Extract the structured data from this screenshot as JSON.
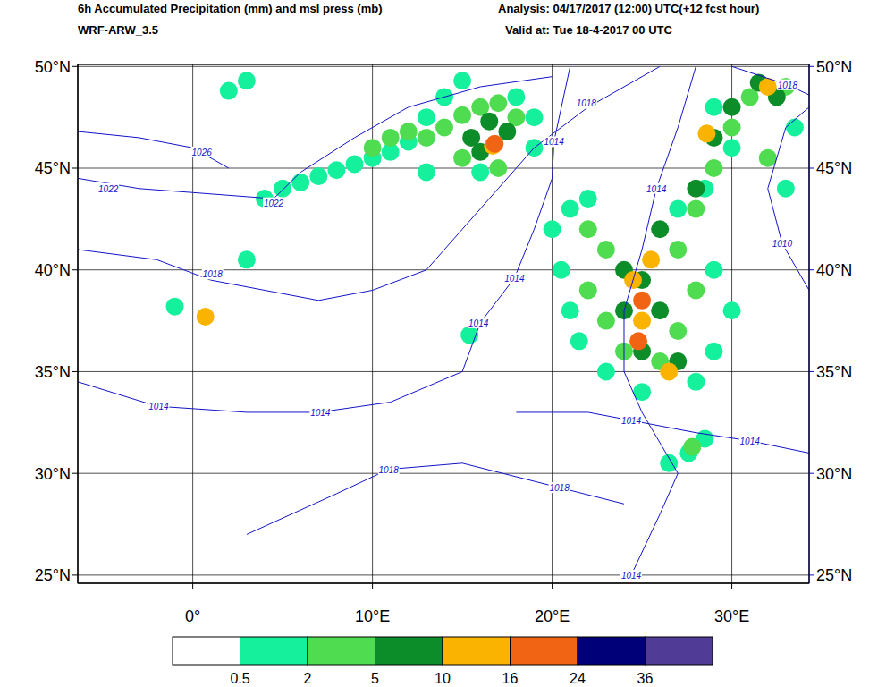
{
  "chart_data": {
    "type": "map",
    "title": "6h Accumulated Precipitation (mm) and msl press (mb)",
    "subtitle": "WRF-ARW_3.5",
    "annotations": [
      "Analysis: 04/17/2017 (12:00) UTC(+12 fcst hour)",
      "Valid at: Tue 18-4-2017 00 UTC"
    ],
    "xlim": [
      -6.4,
      34.3
    ],
    "ylim": [
      24.6,
      50.1
    ],
    "xticks": [
      {
        "value": 0,
        "label": "0°"
      },
      {
        "value": 10,
        "label": "10°E"
      },
      {
        "value": 20,
        "label": "20°E"
      },
      {
        "value": 30,
        "label": "30°E"
      }
    ],
    "yticks": [
      {
        "value": 25,
        "label": "25°N"
      },
      {
        "value": 30,
        "label": "30°N"
      },
      {
        "value": 35,
        "label": "35°N"
      },
      {
        "value": 40,
        "label": "40°N"
      },
      {
        "value": 45,
        "label": "45°N"
      },
      {
        "value": 50,
        "label": "50°N"
      }
    ],
    "grid": true,
    "color_bar": {
      "levels": [
        0.5,
        2,
        5,
        10,
        16,
        24,
        36
      ],
      "colors": [
        "#ffffff",
        "#14f09c",
        "#50dc50",
        "#0d8c2a",
        "#fab400",
        "#f06414",
        "#000078",
        "#503c96"
      ]
    },
    "precip": [
      [
        4,
        43.5,
        1
      ],
      [
        5,
        44,
        1
      ],
      [
        6,
        44.3,
        1
      ],
      [
        7,
        44.6,
        1
      ],
      [
        8,
        44.9,
        1
      ],
      [
        9,
        45.2,
        1
      ],
      [
        10,
        45.5,
        1
      ],
      [
        11,
        45.8,
        1
      ],
      [
        12,
        46.3,
        1
      ],
      [
        13,
        47.5,
        1
      ],
      [
        14,
        48.5,
        1
      ],
      [
        15,
        49.3,
        1
      ],
      [
        18,
        48.5,
        1
      ],
      [
        19,
        47.5,
        1
      ],
      [
        19,
        46,
        1
      ],
      [
        13,
        44.8,
        1
      ],
      [
        16,
        44.8,
        1
      ],
      [
        3,
        40.5,
        1
      ],
      [
        -1,
        38.2,
        1
      ],
      [
        2,
        48.8,
        1
      ],
      [
        3,
        49.3,
        1
      ],
      [
        15.4,
        36.8,
        1
      ],
      [
        20,
        42,
        1
      ],
      [
        21,
        43,
        1
      ],
      [
        22,
        43.5,
        1
      ],
      [
        20.5,
        40,
        1
      ],
      [
        21,
        38,
        1
      ],
      [
        21.5,
        36.5,
        1
      ],
      [
        23,
        35,
        1
      ],
      [
        25,
        34,
        1
      ],
      [
        28,
        34.5,
        1
      ],
      [
        29,
        36,
        1
      ],
      [
        30,
        38,
        1
      ],
      [
        29,
        40,
        1
      ],
      [
        27,
        43,
        1
      ],
      [
        28.5,
        44,
        1
      ],
      [
        30,
        46,
        1
      ],
      [
        29,
        48,
        1
      ],
      [
        33,
        44,
        1
      ],
      [
        33.5,
        47,
        1
      ],
      [
        27.6,
        31,
        1
      ],
      [
        28.5,
        31.7,
        1
      ],
      [
        26.5,
        30.5,
        1
      ],
      [
        10,
        46,
        3
      ],
      [
        11,
        46.5,
        3
      ],
      [
        12,
        46.8,
        3
      ],
      [
        13,
        46.5,
        3
      ],
      [
        14,
        47,
        3
      ],
      [
        15,
        47.6,
        3
      ],
      [
        16,
        48,
        3
      ],
      [
        17,
        48.2,
        3
      ],
      [
        18,
        47.5,
        3
      ],
      [
        15,
        45.5,
        3
      ],
      [
        17,
        45,
        3
      ],
      [
        22,
        42,
        3
      ],
      [
        23,
        41,
        3
      ],
      [
        22,
        39,
        3
      ],
      [
        23,
        37.5,
        3
      ],
      [
        24,
        36,
        3
      ],
      [
        26,
        35.5,
        3
      ],
      [
        27,
        37,
        3
      ],
      [
        28,
        39,
        3
      ],
      [
        27,
        41,
        3
      ],
      [
        28,
        43,
        3
      ],
      [
        29,
        45,
        3
      ],
      [
        30,
        47,
        3
      ],
      [
        31,
        48.5,
        3
      ],
      [
        32,
        45.5,
        3
      ],
      [
        33,
        49,
        3
      ],
      [
        27.8,
        31.3,
        3
      ],
      [
        15.5,
        46.5,
        7
      ],
      [
        16.5,
        47.3,
        7
      ],
      [
        17.5,
        46.8,
        7
      ],
      [
        16,
        45.8,
        7
      ],
      [
        24,
        40,
        7
      ],
      [
        24,
        38,
        7
      ],
      [
        25,
        39.5,
        7
      ],
      [
        26,
        38,
        7
      ],
      [
        25,
        36,
        7
      ],
      [
        27,
        35.5,
        7
      ],
      [
        28,
        44,
        7
      ],
      [
        29,
        46.5,
        7
      ],
      [
        30,
        48,
        7
      ],
      [
        31.5,
        49.2,
        7
      ],
      [
        32.5,
        48.5,
        7
      ],
      [
        26,
        42,
        7
      ],
      [
        16.7,
        46.1,
        12
      ],
      [
        24.5,
        39.5,
        12
      ],
      [
        25,
        37.5,
        12
      ],
      [
        25.5,
        40.5,
        12
      ],
      [
        26.5,
        35,
        12
      ],
      [
        28.6,
        46.7,
        12
      ],
      [
        32,
        49,
        12
      ],
      [
        0.7,
        37.7,
        12
      ],
      [
        25,
        38.5,
        20
      ],
      [
        24.8,
        36.5,
        20
      ],
      [
        16.8,
        46.2,
        20
      ]
    ],
    "isobars": [
      {
        "value": 1026,
        "color": "#1414c8",
        "points": [
          [
            -6.4,
            46.8
          ],
          [
            -3,
            46.5
          ],
          [
            0,
            46
          ],
          [
            2,
            45
          ]
        ],
        "labels": [
          [
            0.5,
            45.8
          ]
        ]
      },
      {
        "value": 1022,
        "color": "#1414c8",
        "points": [
          [
            -6.4,
            44.5
          ],
          [
            -3,
            44
          ],
          [
            0,
            43.8
          ],
          [
            4.5,
            43.5
          ],
          [
            6,
            44.8
          ],
          [
            9,
            46.5
          ],
          [
            12,
            48
          ],
          [
            16,
            49
          ],
          [
            20,
            49.5
          ]
        ],
        "labels": [
          [
            -4.7,
            44
          ],
          [
            4.5,
            43.3
          ]
        ]
      },
      {
        "value": 1018,
        "color": "#1414c8",
        "points": [
          [
            -6.4,
            41
          ],
          [
            -2,
            40.5
          ],
          [
            1,
            39.5
          ],
          [
            4,
            39
          ],
          [
            7,
            38.5
          ],
          [
            10,
            39
          ],
          [
            13,
            40
          ],
          [
            15,
            42
          ],
          [
            17,
            44
          ],
          [
            19,
            46
          ],
          [
            22,
            48
          ],
          [
            26,
            50
          ]
        ],
        "labels": [
          [
            1.1,
            39.8
          ],
          [
            21.9,
            48.2
          ]
        ]
      },
      {
        "value": 1014,
        "color": "#1414c8",
        "points": [
          [
            -6.4,
            34.5
          ],
          [
            -2,
            33.3
          ],
          [
            3,
            33
          ],
          [
            7,
            33
          ],
          [
            11,
            33.5
          ],
          [
            15,
            35
          ],
          [
            16,
            37.4
          ],
          [
            17.9,
            39.6
          ],
          [
            19,
            42
          ],
          [
            20,
            44.5
          ],
          [
            20.1,
            46.3
          ],
          [
            21,
            50
          ]
        ],
        "labels": [
          [
            -1.9,
            33.3
          ],
          [
            7.1,
            33
          ],
          [
            15.9,
            37.4
          ],
          [
            17.9,
            39.6
          ],
          [
            20.1,
            46.3
          ]
        ]
      },
      {
        "value": 1018,
        "color": "#1414c8",
        "points": [
          [
            3,
            27
          ],
          [
            8,
            29
          ],
          [
            10.9,
            30.2
          ],
          [
            15,
            30.5
          ],
          [
            20.4,
            29.3
          ],
          [
            24,
            28.5
          ]
        ],
        "labels": [
          [
            10.9,
            30.2
          ],
          [
            20.4,
            29.3
          ]
        ]
      },
      {
        "value": 1014,
        "color": "#1414c8",
        "points": [
          [
            18,
            33
          ],
          [
            22,
            33
          ],
          [
            24.4,
            32.6
          ],
          [
            28,
            32
          ],
          [
            31,
            31.6
          ],
          [
            34.3,
            31
          ]
        ],
        "labels": [
          [
            24.4,
            32.6
          ],
          [
            31,
            31.6
          ]
        ]
      },
      {
        "value": 1014,
        "color": "#1414c8",
        "points": [
          [
            24.4,
            25
          ],
          [
            26,
            28
          ],
          [
            27,
            30
          ],
          [
            25,
            33
          ],
          [
            24,
            35
          ],
          [
            24,
            38
          ],
          [
            25,
            41
          ],
          [
            25.8,
            44
          ],
          [
            27,
            47
          ],
          [
            28,
            50
          ]
        ],
        "labels": [
          [
            24.4,
            25
          ],
          [
            25.8,
            44
          ]
        ]
      },
      {
        "value": 1010,
        "color": "#1414c8",
        "points": [
          [
            34.3,
            39
          ],
          [
            32.8,
            41.3
          ],
          [
            32,
            44
          ],
          [
            33,
            47
          ],
          [
            34.3,
            48
          ]
        ],
        "labels": [
          [
            32.8,
            41.3
          ]
        ]
      },
      {
        "value": 1018,
        "color": "#1414c8",
        "points": [
          [
            30,
            50
          ],
          [
            33.1,
            49.1
          ],
          [
            34.3,
            48.6
          ]
        ],
        "labels": [
          [
            33.1,
            49.1
          ]
        ]
      }
    ]
  }
}
